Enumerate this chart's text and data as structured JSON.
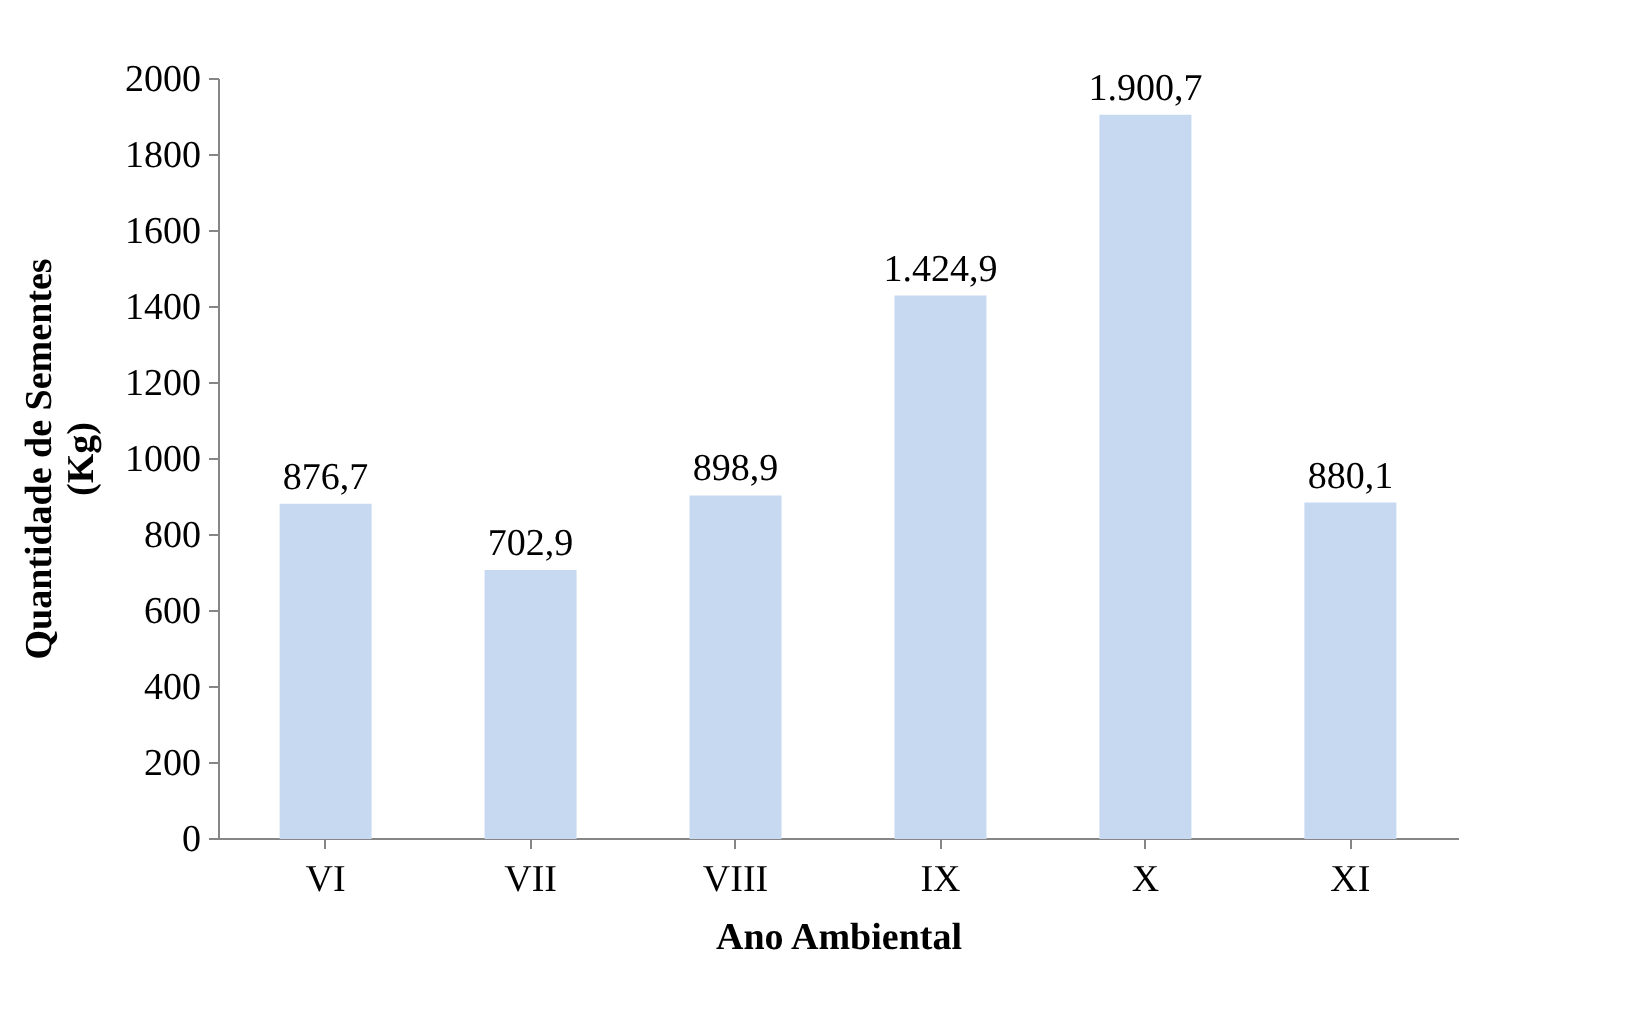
{
  "chart_data": {
    "type": "bar",
    "xlabel": "Ano Ambiental",
    "ylabel": "Quantidade de Sementes (Kg)",
    "categories": [
      "VI",
      "VII",
      "VIII",
      "IX",
      "X",
      "XI"
    ],
    "values": [
      876.7,
      702.9,
      898.9,
      1424.9,
      1900.7,
      880.1
    ],
    "value_labels": [
      "876,7",
      "702,9",
      "898,9",
      "1.424,9",
      "1.900,7",
      "880,1"
    ],
    "color": "#c6d9f1",
    "ylim": [
      0,
      2000
    ],
    "yticks": [
      0,
      200,
      400,
      600,
      800,
      1000,
      1200,
      1400,
      1600,
      1800,
      2000
    ],
    "grid": false
  }
}
